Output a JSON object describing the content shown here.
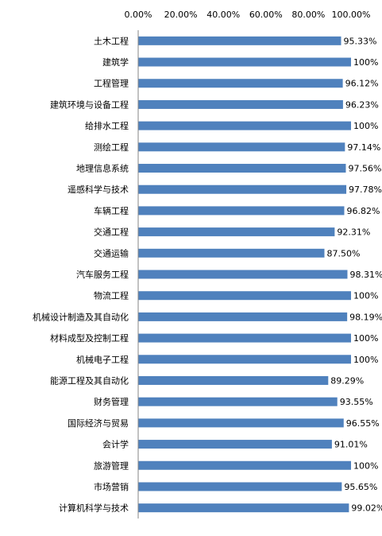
{
  "chart_data": {
    "type": "bar",
    "orientation": "horizontal",
    "x_axis_position": "top",
    "grid": false,
    "legend": "none",
    "xlim": [
      0,
      100
    ],
    "x_ticks": [
      0,
      20,
      40,
      60,
      80,
      100
    ],
    "x_tick_labels": [
      "0.00%",
      "20.00%",
      "40.00%",
      "60.00%",
      "80.00%",
      "100.00%"
    ],
    "bar_color": "#4F81BD",
    "axis_color": "#868686",
    "categories": [
      "土木工程",
      "建筑学",
      "工程管理",
      "建筑环境与设备工程",
      "给排水工程",
      "测绘工程",
      "地理信息系统",
      "遥感科学与技术",
      "车辆工程",
      "交通工程",
      "交通运输",
      "汽车服务工程",
      "物流工程",
      "机械设计制造及其自动化",
      "材料成型及控制工程",
      "机械电子工程",
      "能源工程及其自动化",
      "财务管理",
      "国际经济与贸易",
      "会计学",
      "旅游管理",
      "市场营销",
      "计算机科学与技术"
    ],
    "values": [
      95.33,
      100,
      96.12,
      96.23,
      100,
      97.14,
      97.56,
      97.78,
      96.82,
      92.31,
      87.5,
      98.31,
      100,
      98.19,
      100,
      100,
      89.29,
      93.55,
      96.55,
      91.01,
      100,
      95.65,
      99.02
    ],
    "data_labels": [
      "95.33%",
      "100%",
      "96.12%",
      "96.23%",
      "100%",
      "97.14%",
      "97.56%",
      "97.78%",
      "96.82%",
      "92.31%",
      "87.50%",
      "98.31%",
      "100%",
      "98.19%",
      "100%",
      "100%",
      "89.29%",
      "93.55%",
      "96.55%",
      "91.01%",
      "100%",
      "95.65%",
      "99.02%"
    ]
  }
}
